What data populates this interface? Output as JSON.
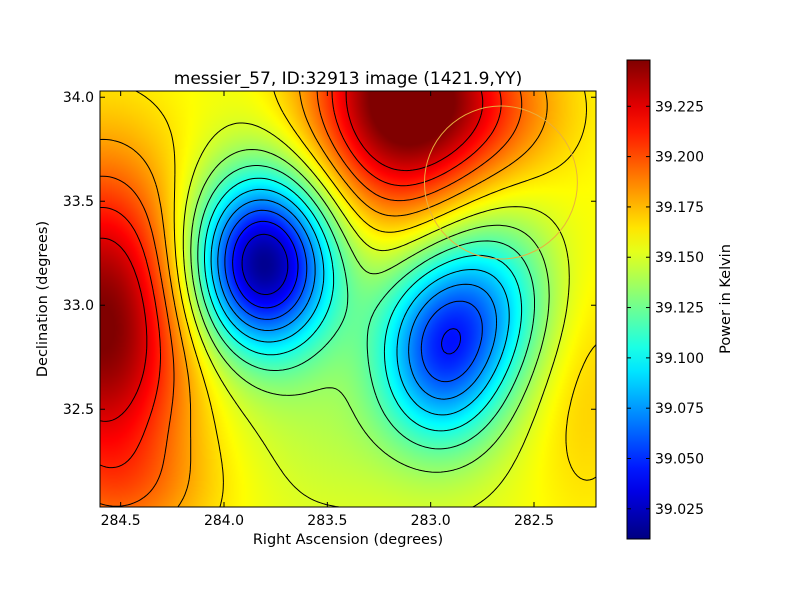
{
  "chart_data": {
    "type": "heatmap",
    "title": "messier_57, ID:32913 image (1421.9,YY)",
    "xlabel": "Right Ascension (degrees)",
    "ylabel": "Declination (degrees)",
    "xlim": [
      284.6,
      282.2
    ],
    "ylim": [
      32.03,
      34.03
    ],
    "x_ticks": [
      {
        "value": 284.5,
        "label": "284.5"
      },
      {
        "value": 284.0,
        "label": "284.0"
      },
      {
        "value": 283.5,
        "label": "283.5"
      },
      {
        "value": 283.0,
        "label": "283.0"
      },
      {
        "value": 282.5,
        "label": "282.5"
      }
    ],
    "y_ticks": [
      {
        "value": 32.5,
        "label": "32.5"
      },
      {
        "value": 33.0,
        "label": "33.0"
      },
      {
        "value": 33.5,
        "label": "33.5"
      },
      {
        "value": 34.0,
        "label": "34.0"
      }
    ],
    "colorbar": {
      "label": "Power in Kelvin",
      "range": [
        39.01,
        39.248
      ],
      "ticks": [
        {
          "value": 39.025,
          "label": "39.025"
        },
        {
          "value": 39.05,
          "label": "39.050"
        },
        {
          "value": 39.075,
          "label": "39.075"
        },
        {
          "value": 39.1,
          "label": "39.100"
        },
        {
          "value": 39.125,
          "label": "39.125"
        },
        {
          "value": 39.15,
          "label": "39.150"
        },
        {
          "value": 39.175,
          "label": "39.175"
        },
        {
          "value": 39.2,
          "label": "39.200"
        },
        {
          "value": 39.225,
          "label": "39.225"
        }
      ],
      "colormap": "jet"
    },
    "background_level": 39.155,
    "features": [
      {
        "kind": "minimum",
        "ra": 283.81,
        "dec": 33.2,
        "sigma_ra": 0.24,
        "sigma_dec": 0.3,
        "amplitude": -0.145
      },
      {
        "kind": "minimum",
        "ra": 282.95,
        "dec": 32.78,
        "sigma_ra": 0.22,
        "sigma_dec": 0.32,
        "amplitude": -0.095
      },
      {
        "kind": "minimum",
        "ra": 282.68,
        "dec": 33.05,
        "sigma_ra": 0.22,
        "sigma_dec": 0.3,
        "amplitude": -0.045
      },
      {
        "kind": "maximum",
        "ra": 283.15,
        "dec": 34.0,
        "sigma_ra": 0.3,
        "sigma_dec": 0.4,
        "amplitude": 0.1
      },
      {
        "kind": "maximum",
        "ra": 284.58,
        "dec": 32.9,
        "sigma_ra": 0.3,
        "sigma_dec": 0.55,
        "amplitude": 0.095
      },
      {
        "kind": "maximum",
        "ra": 282.72,
        "dec": 33.95,
        "sigma_ra": 0.3,
        "sigma_dec": 0.25,
        "amplitude": 0.03
      },
      {
        "kind": "maximum",
        "ra": 284.4,
        "dec": 32.1,
        "sigma_ra": 0.3,
        "sigma_dec": 0.2,
        "amplitude": 0.015
      },
      {
        "kind": "maximum",
        "ra": 282.25,
        "dec": 32.6,
        "sigma_ra": 0.2,
        "sigma_dec": 0.5,
        "amplitude": 0.015
      },
      {
        "kind": "minimum",
        "ra": 283.5,
        "dec": 32.4,
        "sigma_ra": 0.3,
        "sigma_dec": 0.3,
        "amplitude": -0.01
      }
    ],
    "contour_levels": [
      39.03,
      39.045,
      39.06,
      39.075,
      39.09,
      39.105,
      39.12,
      39.135,
      39.15,
      39.165,
      39.18,
      39.195,
      39.21,
      39.225
    ],
    "annotation_circle": {
      "ra": 282.66,
      "dec": 33.59,
      "radius_deg": 0.37,
      "color": "#e8b040"
    },
    "grid": false
  }
}
